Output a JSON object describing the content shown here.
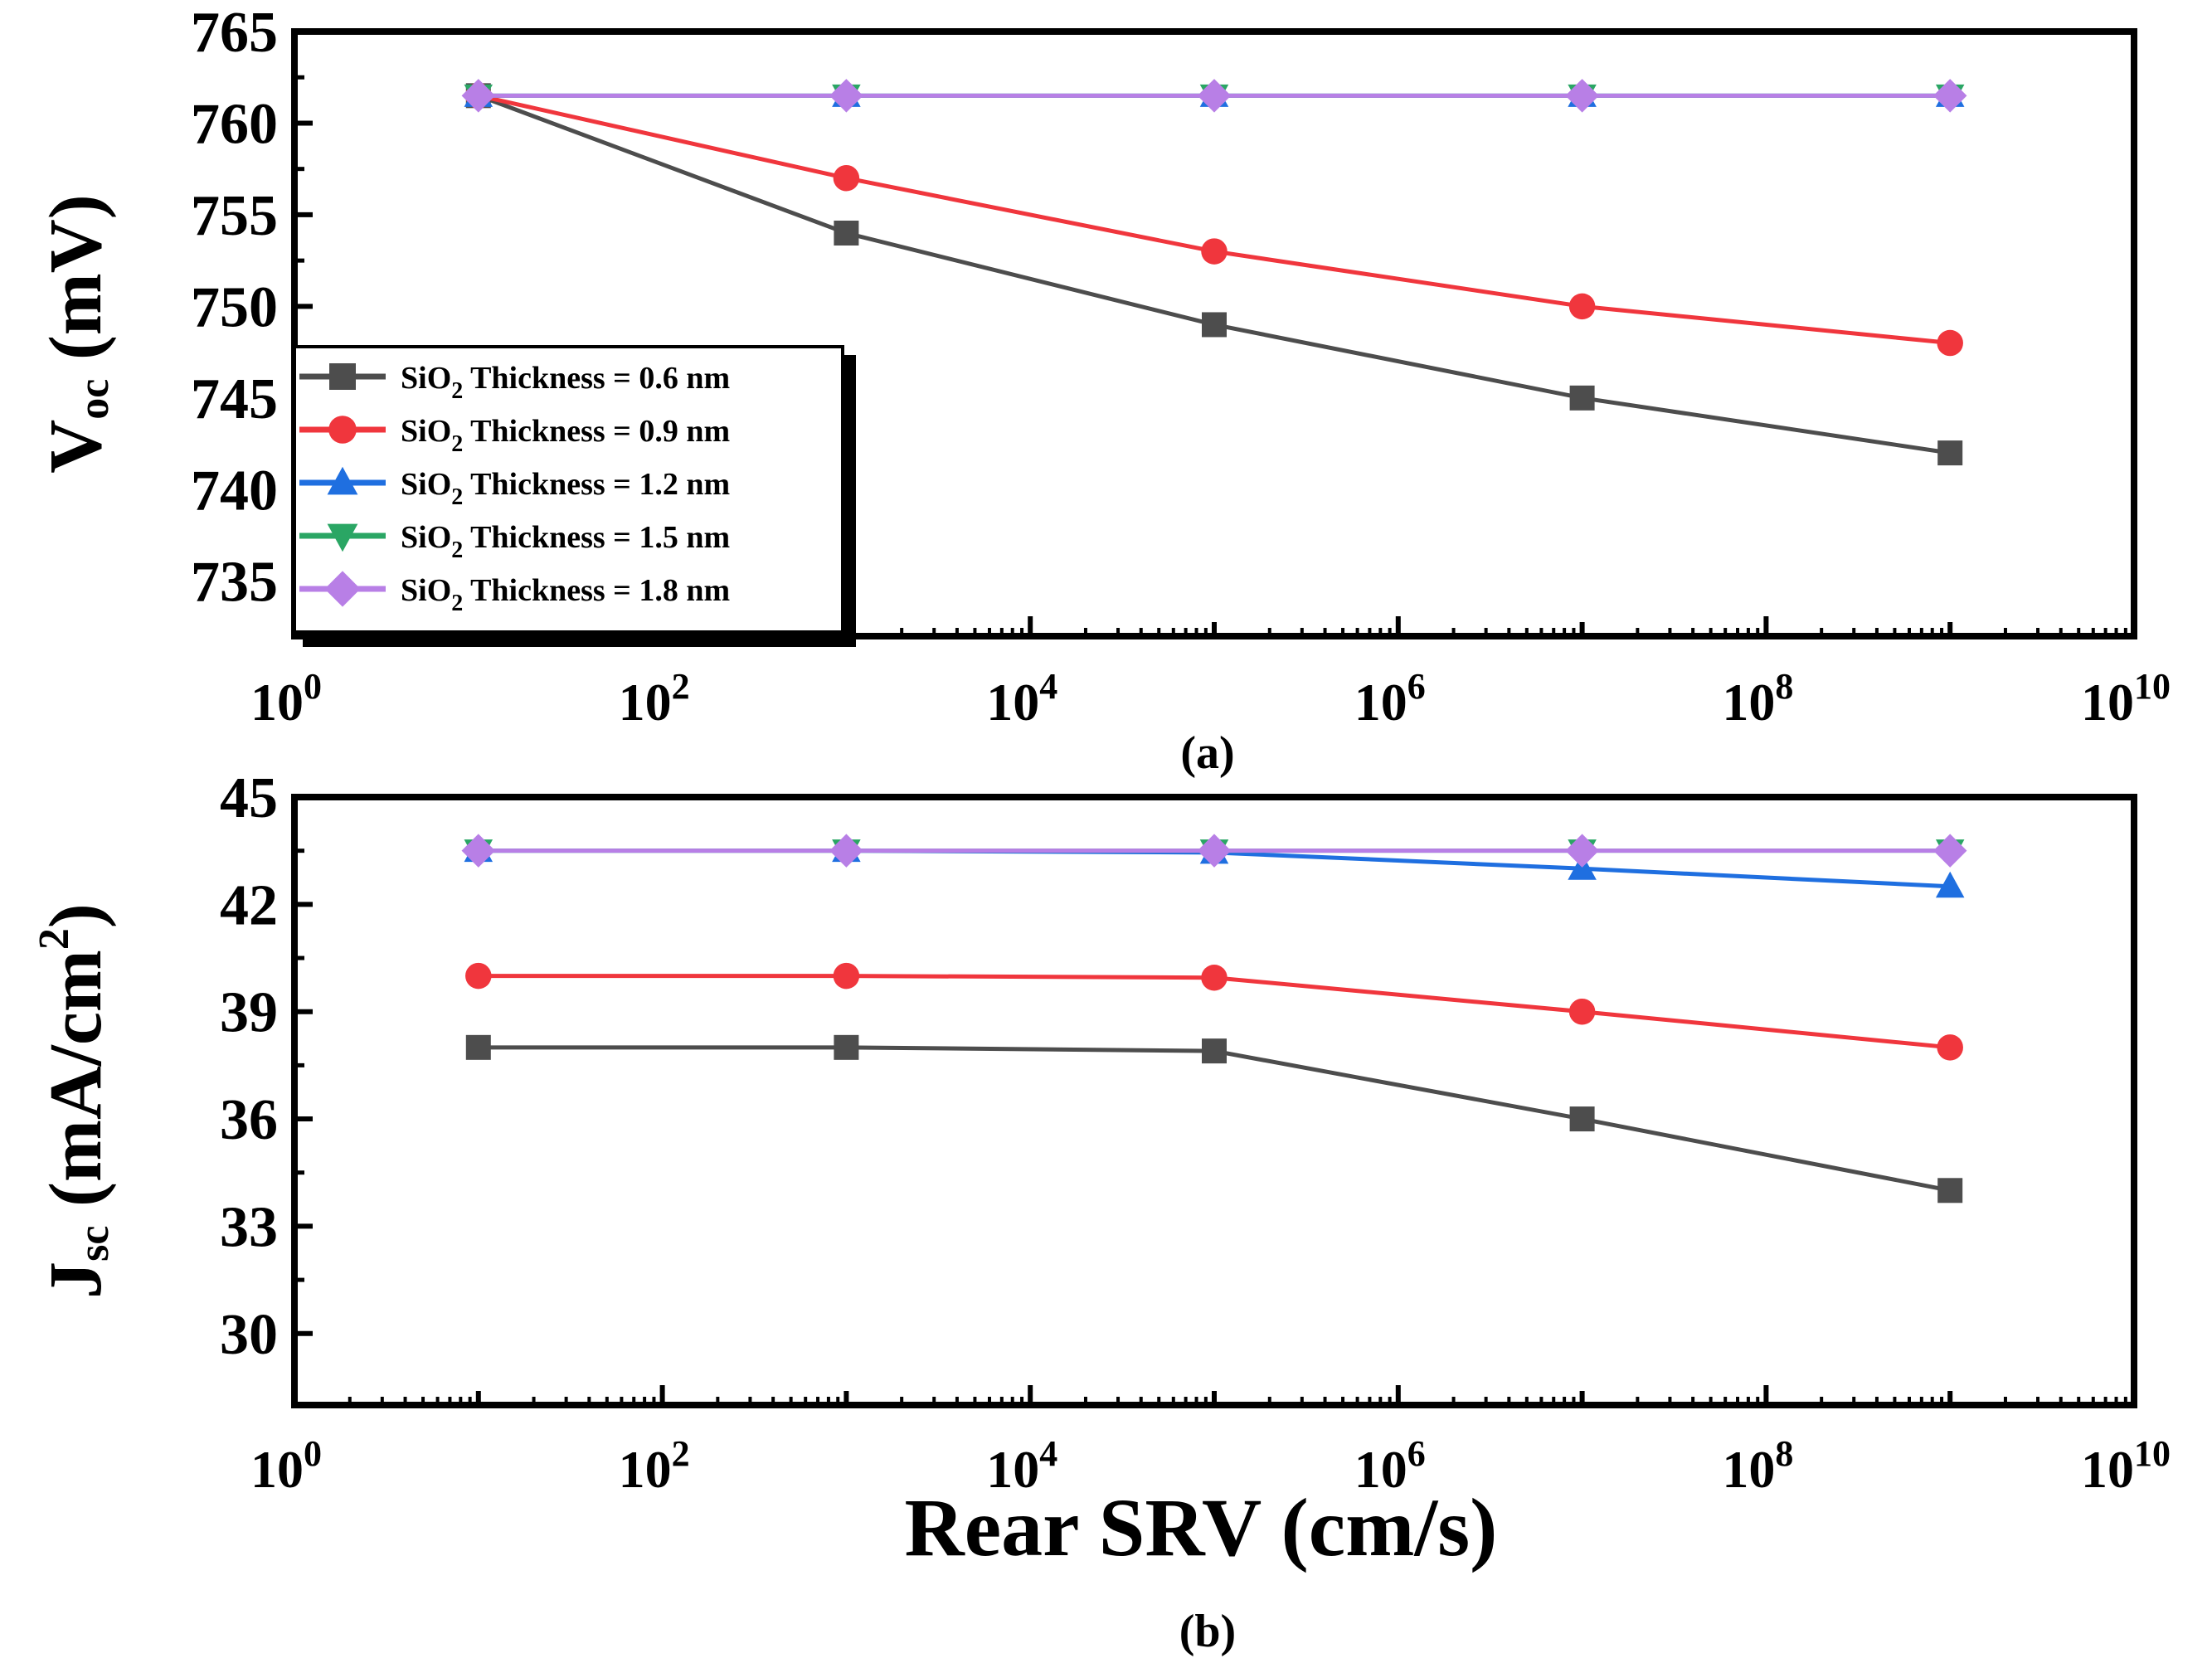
{
  "chart_data": [
    {
      "type": "line",
      "panel_label": "(a)",
      "ylabel": {
        "main": "V",
        "sub": "oc",
        "rest": " (mV)"
      },
      "xlabel": "",
      "xscale": "log",
      "xlim": [
        1,
        10000000000
      ],
      "ylim": [
        732,
        765
      ],
      "yticks": [
        735,
        740,
        745,
        750,
        755,
        760,
        765
      ],
      "xtick_labels": [
        {
          "base": "10",
          "exp": "0"
        },
        {
          "base": "10",
          "exp": "2"
        },
        {
          "base": "10",
          "exp": "4"
        },
        {
          "base": "10",
          "exp": "6"
        },
        {
          "base": "10",
          "exp": "8"
        },
        {
          "base": "10",
          "exp": "10"
        }
      ],
      "x": [
        10,
        1000,
        100000,
        10000000,
        1000000000
      ],
      "legend_position": "center-left",
      "series": [
        {
          "name": "SiO2 Thickness = 0.6 nm",
          "label_pre": "SiO",
          "label_sub": "2",
          "label_post": " Thickness = 0.6 nm",
          "color": "#4d4d4d",
          "marker": "square",
          "values": [
            761.5,
            754,
            749,
            745,
            742
          ]
        },
        {
          "name": "SiO2 Thickness = 0.9 nm",
          "label_pre": "SiO",
          "label_sub": "2",
          "label_post": " Thickness = 0.9 nm",
          "color": "#f0363d",
          "marker": "circle",
          "values": [
            761.5,
            757,
            753,
            750,
            748
          ]
        },
        {
          "name": "SiO2 Thickness = 1.2 nm",
          "label_pre": "SiO",
          "label_sub": "2",
          "label_post": " Thickness = 1.2 nm",
          "color": "#1f6fe0",
          "marker": "triangle-up",
          "values": [
            761.5,
            761.5,
            761.5,
            761.5,
            761.5
          ]
        },
        {
          "name": "SiO2 Thickness = 1.5 nm",
          "label_pre": "SiO",
          "label_sub": "2",
          "label_post": " Thickness = 1.5 nm",
          "color": "#2aa664",
          "marker": "triangle-down",
          "values": [
            761.5,
            761.5,
            761.5,
            761.5,
            761.5
          ]
        },
        {
          "name": "SiO2 Thickness = 1.8 nm",
          "label_pre": "SiO",
          "label_sub": "2",
          "label_post": " Thickness = 1.8 nm",
          "color": "#b87fe6",
          "marker": "diamond",
          "values": [
            761.5,
            761.5,
            761.5,
            761.5,
            761.5
          ]
        }
      ]
    },
    {
      "type": "line",
      "panel_label": "(b)",
      "ylabel": {
        "main": "J",
        "sub": "sc",
        "rest": " (mA/cm",
        "sup": "2",
        "end": ")"
      },
      "xlabel": "Rear SRV (cm/s)",
      "xscale": "log",
      "xlim": [
        1,
        10000000000
      ],
      "ylim": [
        28,
        45
      ],
      "yticks": [
        30,
        33,
        36,
        39,
        42,
        45
      ],
      "xtick_labels": [
        {
          "base": "10",
          "exp": "0"
        },
        {
          "base": "10",
          "exp": "2"
        },
        {
          "base": "10",
          "exp": "4"
        },
        {
          "base": "10",
          "exp": "6"
        },
        {
          "base": "10",
          "exp": "8"
        },
        {
          "base": "10",
          "exp": "10"
        }
      ],
      "x": [
        10,
        1000,
        100000,
        10000000,
        1000000000
      ],
      "series": [
        {
          "name": "SiO2 Thickness = 0.6 nm",
          "color": "#4d4d4d",
          "marker": "square",
          "values": [
            38,
            38,
            37.9,
            36,
            34
          ]
        },
        {
          "name": "SiO2 Thickness = 0.9 nm",
          "color": "#f0363d",
          "marker": "circle",
          "values": [
            40,
            40,
            39.95,
            39,
            38
          ]
        },
        {
          "name": "SiO2 Thickness = 1.2 nm",
          "color": "#1f6fe0",
          "marker": "triangle-up",
          "values": [
            43.5,
            43.5,
            43.45,
            43,
            42.5
          ]
        },
        {
          "name": "SiO2 Thickness = 1.5 nm",
          "color": "#2aa664",
          "marker": "triangle-down",
          "values": [
            43.5,
            43.5,
            43.5,
            43.5,
            43.5
          ]
        },
        {
          "name": "SiO2 Thickness = 1.8 nm",
          "color": "#b87fe6",
          "marker": "diamond",
          "values": [
            43.5,
            43.5,
            43.5,
            43.5,
            43.5
          ]
        }
      ]
    }
  ]
}
